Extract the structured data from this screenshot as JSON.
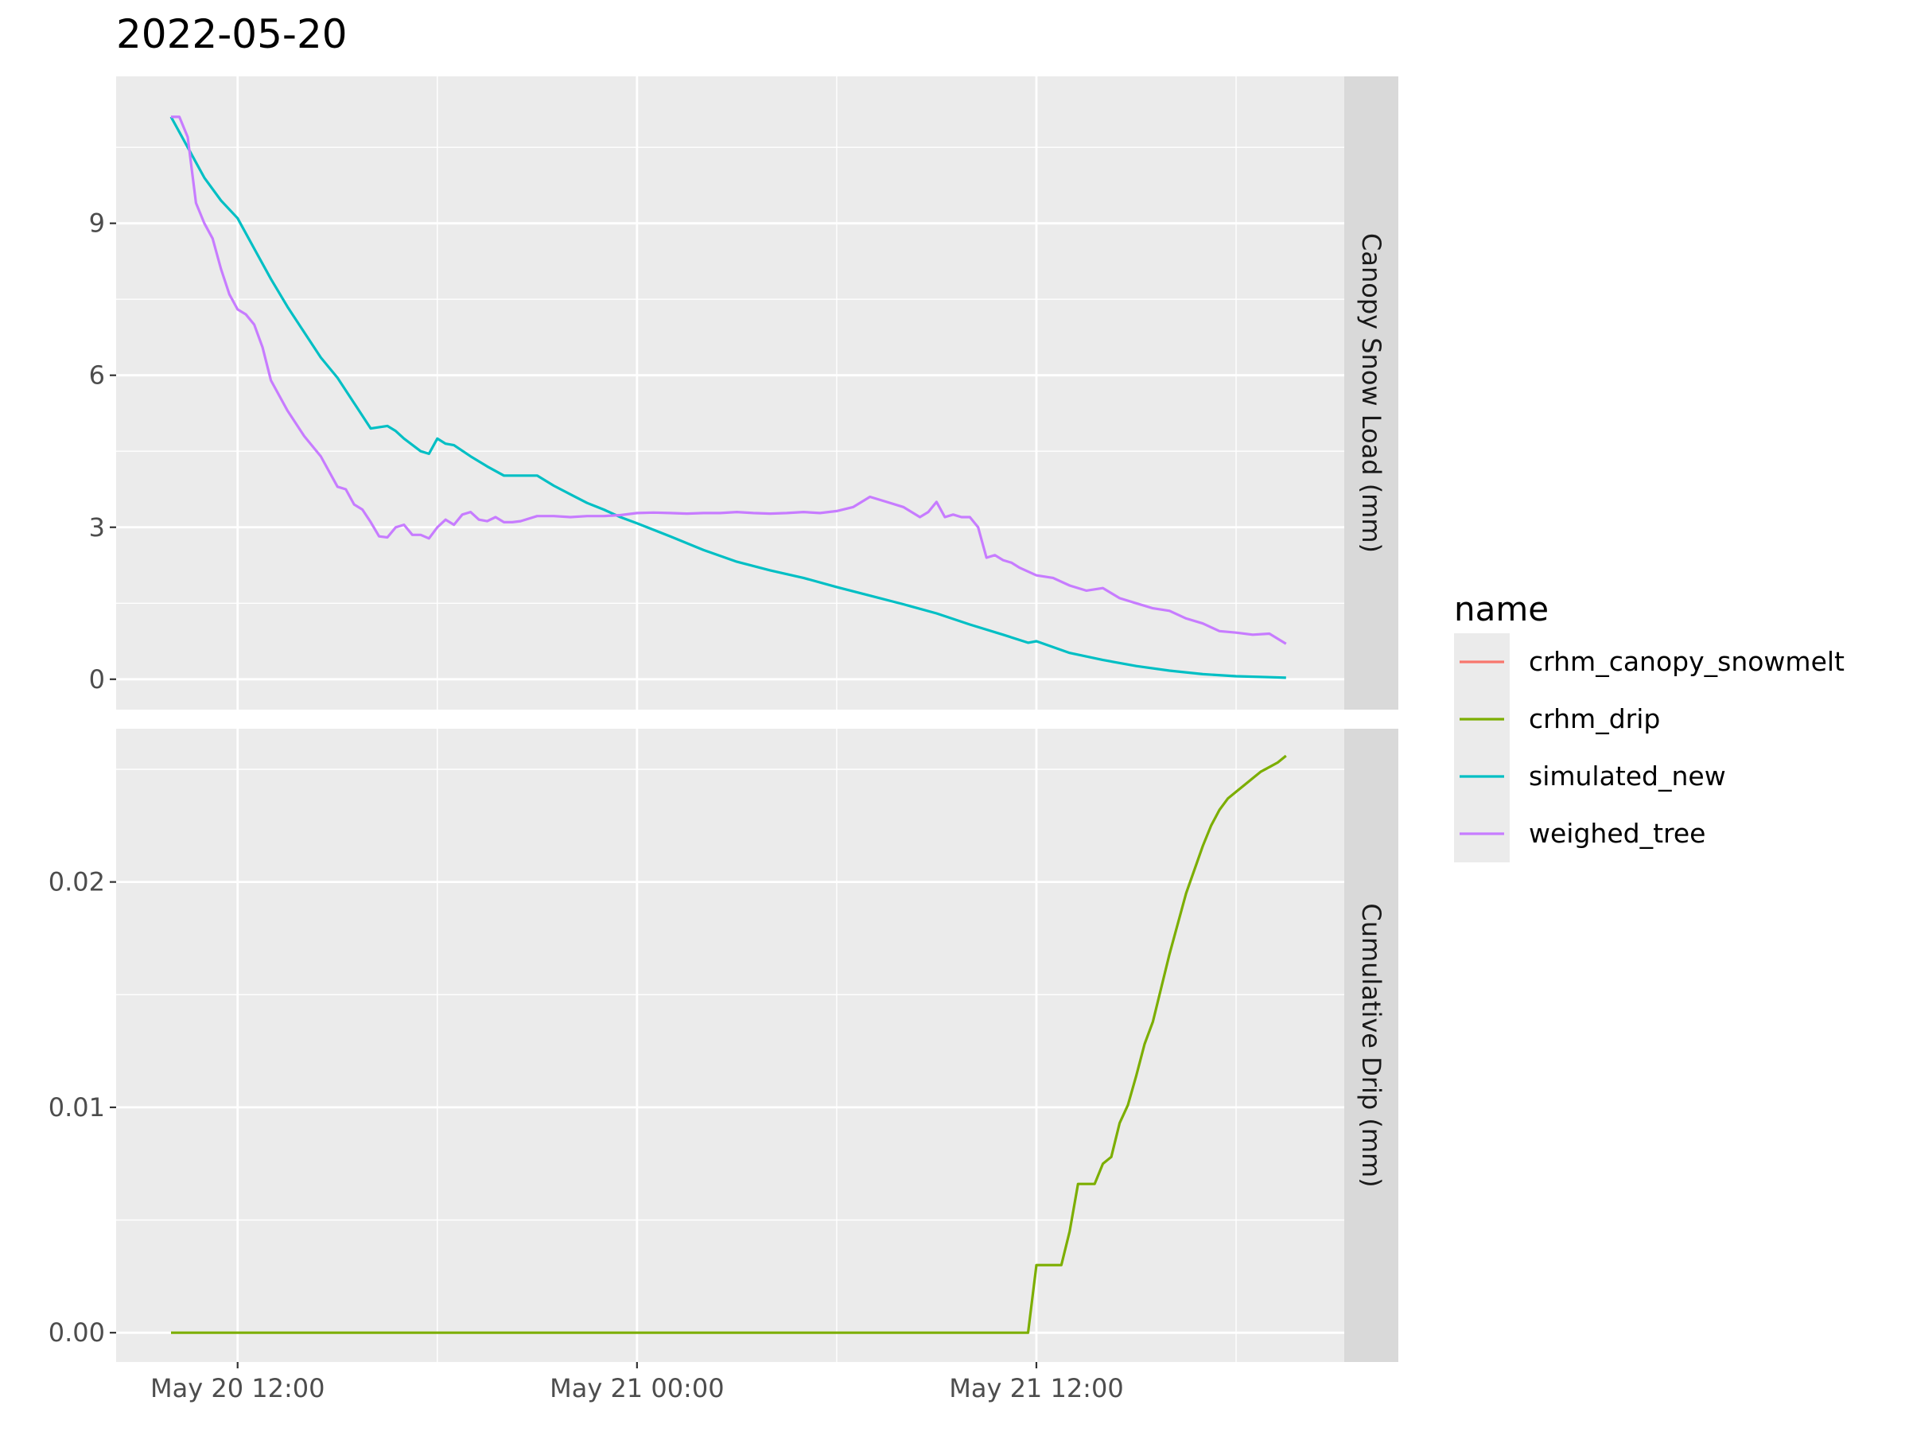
{
  "title": "2022-05-20",
  "legend": {
    "title": "name",
    "items": [
      {
        "label": "crhm_canopy_snowmelt",
        "color": "#F8766D"
      },
      {
        "label": "crhm_drip",
        "color": "#7CAE00"
      },
      {
        "label": "simulated_new",
        "color": "#00BFC4"
      },
      {
        "label": "weighed_tree",
        "color": "#C77CFF"
      }
    ]
  },
  "chart_data": {
    "type": "line",
    "title": "2022-05-20",
    "x_unit": "hours after 2022-05-20 00:00",
    "x_ticks": [
      {
        "value": 12,
        "label": "May 20 12:00"
      },
      {
        "value": 24,
        "label": "May 21 00:00"
      },
      {
        "value": 36,
        "label": "May 21 12:00"
      }
    ],
    "x_minor_ticks": [
      18,
      30,
      42
    ],
    "xlim": [
      8.35,
      45.25
    ],
    "grid": true,
    "legend_position": "right",
    "panels": [
      {
        "strip_label": "Canopy Snow Load (mm)",
        "ylim": [
          -0.6,
          11.9
        ],
        "y_ticks": [
          {
            "value": 0,
            "label": "0"
          },
          {
            "value": 3,
            "label": "3"
          },
          {
            "value": 6,
            "label": "6"
          },
          {
            "value": 9,
            "label": "9"
          }
        ],
        "y_minor_ticks": [
          1.5,
          4.5,
          7.5,
          10.5
        ],
        "series": [
          {
            "name": "simulated_new",
            "color": "#00BFC4",
            "x": [
              10,
              10.5,
              11,
              11.5,
              12,
              12.5,
              13,
              13.5,
              14,
              14.5,
              15,
              15.5,
              16,
              16.5,
              16.75,
              17,
              17.5,
              17.75,
              18,
              18.25,
              18.5,
              19,
              19.5,
              20,
              20.5,
              21,
              21.5,
              22,
              22.5,
              23,
              23.5,
              24,
              25,
              26,
              27,
              28,
              29,
              30,
              31,
              32,
              33,
              34,
              35,
              35.75,
              36,
              37,
              38,
              39,
              40,
              41,
              42,
              43,
              43.5
            ],
            "y": [
              11.1,
              10.5,
              9.9,
              9.45,
              9.1,
              8.5,
              7.9,
              7.35,
              6.85,
              6.35,
              5.95,
              5.45,
              4.95,
              5.0,
              4.9,
              4.75,
              4.5,
              4.45,
              4.75,
              4.65,
              4.62,
              4.4,
              4.2,
              4.02,
              4.02,
              4.02,
              3.82,
              3.65,
              3.48,
              3.35,
              3.2,
              3.08,
              2.82,
              2.55,
              2.32,
              2.15,
              2.0,
              1.82,
              1.65,
              1.48,
              1.3,
              1.08,
              0.88,
              0.72,
              0.75,
              0.52,
              0.38,
              0.26,
              0.17,
              0.1,
              0.06,
              0.04,
              0.03
            ]
          },
          {
            "name": "weighed_tree",
            "color": "#C77CFF",
            "x": [
              10,
              10.25,
              10.5,
              10.75,
              11,
              11.25,
              11.5,
              11.75,
              12,
              12.25,
              12.5,
              12.75,
              13,
              13.5,
              14,
              14.5,
              15,
              15.25,
              15.5,
              15.75,
              16,
              16.25,
              16.5,
              16.75,
              17,
              17.25,
              17.5,
              17.75,
              18,
              18.25,
              18.5,
              18.75,
              19,
              19.25,
              19.5,
              19.75,
              20,
              20.25,
              20.5,
              21,
              21.5,
              22,
              22.5,
              23,
              23.5,
              24,
              24.5,
              25,
              25.5,
              26,
              26.5,
              27,
              27.5,
              28,
              28.5,
              29,
              29.5,
              30,
              30.5,
              31,
              31.5,
              32,
              32.5,
              32.75,
              33,
              33.25,
              33.5,
              33.75,
              34,
              34.25,
              34.5,
              34.75,
              35,
              35.25,
              35.5,
              36,
              36.5,
              37,
              37.5,
              38,
              38.5,
              39,
              39.5,
              40,
              40.5,
              41,
              41.5,
              42,
              42.5,
              43,
              43.5
            ],
            "y": [
              11.1,
              11.1,
              10.7,
              9.4,
              9.0,
              8.7,
              8.1,
              7.6,
              7.3,
              7.2,
              7.0,
              6.55,
              5.9,
              5.3,
              4.8,
              4.4,
              3.8,
              3.75,
              3.45,
              3.35,
              3.1,
              2.82,
              2.8,
              3.0,
              3.05,
              2.85,
              2.85,
              2.78,
              3.0,
              3.15,
              3.05,
              3.25,
              3.3,
              3.15,
              3.12,
              3.2,
              3.1,
              3.1,
              3.12,
              3.22,
              3.22,
              3.2,
              3.22,
              3.22,
              3.24,
              3.28,
              3.29,
              3.28,
              3.27,
              3.28,
              3.28,
              3.3,
              3.28,
              3.27,
              3.28,
              3.3,
              3.28,
              3.32,
              3.4,
              3.6,
              3.5,
              3.4,
              3.2,
              3.3,
              3.5,
              3.2,
              3.25,
              3.2,
              3.2,
              3.0,
              2.4,
              2.45,
              2.35,
              2.3,
              2.2,
              2.05,
              2.0,
              1.85,
              1.75,
              1.8,
              1.6,
              1.5,
              1.4,
              1.35,
              1.2,
              1.1,
              0.95,
              0.92,
              0.88,
              0.9,
              0.7
            ]
          }
        ]
      },
      {
        "strip_label": "Cumulative Drip (mm)",
        "ylim": [
          -0.0013,
          0.0268
        ],
        "y_ticks": [
          {
            "value": 0,
            "label": "0.00"
          },
          {
            "value": 0.01,
            "label": "0.01"
          },
          {
            "value": 0.02,
            "label": "0.02"
          }
        ],
        "y_minor_ticks": [
          0.005,
          0.015,
          0.025
        ],
        "series": [
          {
            "name": "crhm_drip",
            "color": "#7CAE00",
            "x": [
              10,
              35.75,
              36,
              36.25,
              36.5,
              36.75,
              37,
              37.25,
              37.5,
              37.75,
              38,
              38.25,
              38.5,
              38.75,
              39,
              39.25,
              39.5,
              40,
              40.5,
              41,
              41.25,
              41.5,
              41.75,
              42,
              42.25,
              42.5,
              42.75,
              43,
              43.25,
              43.5
            ],
            "y": [
              0,
              0,
              0.003,
              0.003,
              0.003,
              0.003,
              0.0045,
              0.0066,
              0.0066,
              0.0066,
              0.0075,
              0.0078,
              0.0093,
              0.0101,
              0.0114,
              0.0128,
              0.0138,
              0.0168,
              0.0195,
              0.0216,
              0.0225,
              0.0232,
              0.0237,
              0.024,
              0.0243,
              0.0246,
              0.0249,
              0.0251,
              0.0253,
              0.0256
            ]
          }
        ]
      }
    ]
  }
}
